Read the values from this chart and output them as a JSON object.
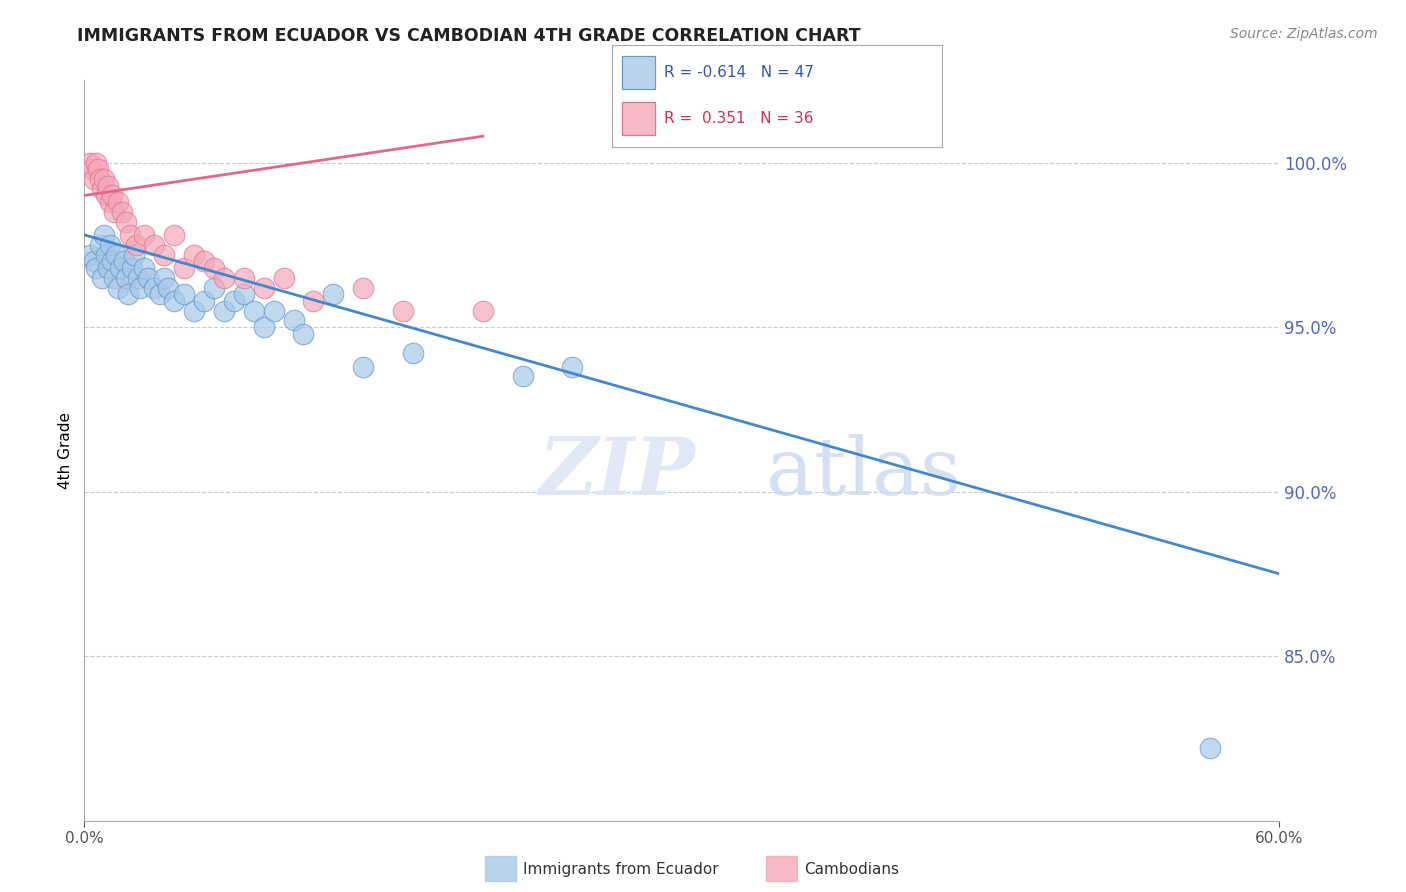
{
  "title": "IMMIGRANTS FROM ECUADOR VS CAMBODIAN 4TH GRADE CORRELATION CHART",
  "source_text": "Source: ZipAtlas.com",
  "ylabel": "4th Grade",
  "ytick_values": [
    85.0,
    90.0,
    95.0,
    100.0
  ],
  "xlim": [
    0.0,
    60.0
  ],
  "ylim": [
    80.0,
    102.5
  ],
  "legend1_label": "Immigrants from Ecuador",
  "legend2_label": "Cambodians",
  "blue_color": "#a8c8e8",
  "pink_color": "#f4a8b8",
  "blue_line_color": "#4488cc",
  "pink_line_color": "#e06888",
  "blue_marker_edge": "#6699cc",
  "pink_marker_edge": "#dd7799",
  "blue_x": [
    0.3,
    0.5,
    0.6,
    0.8,
    0.9,
    1.0,
    1.1,
    1.2,
    1.3,
    1.4,
    1.5,
    1.6,
    1.7,
    1.8,
    2.0,
    2.1,
    2.2,
    2.4,
    2.5,
    2.7,
    2.8,
    3.0,
    3.2,
    3.5,
    3.8,
    4.0,
    4.2,
    4.5,
    5.0,
    5.5,
    6.0,
    6.5,
    7.0,
    7.5,
    8.0,
    8.5,
    9.0,
    9.5,
    10.5,
    11.0,
    12.5,
    14.0,
    16.5,
    22.0,
    24.5,
    56.5
  ],
  "blue_y": [
    97.2,
    97.0,
    96.8,
    97.5,
    96.5,
    97.8,
    97.2,
    96.8,
    97.5,
    97.0,
    96.5,
    97.2,
    96.2,
    96.8,
    97.0,
    96.5,
    96.0,
    96.8,
    97.2,
    96.5,
    96.2,
    96.8,
    96.5,
    96.2,
    96.0,
    96.5,
    96.2,
    95.8,
    96.0,
    95.5,
    95.8,
    96.2,
    95.5,
    95.8,
    96.0,
    95.5,
    95.0,
    95.5,
    95.2,
    94.8,
    96.0,
    93.8,
    94.2,
    93.5,
    93.8,
    82.2
  ],
  "pink_x": [
    0.3,
    0.4,
    0.5,
    0.6,
    0.7,
    0.8,
    0.9,
    1.0,
    1.1,
    1.2,
    1.3,
    1.4,
    1.5,
    1.7,
    1.9,
    2.1,
    2.3,
    2.6,
    3.0,
    3.5,
    4.0,
    4.5,
    5.0,
    5.5,
    6.0,
    6.5,
    7.0,
    8.0,
    9.0,
    10.0,
    11.5,
    14.0,
    16.0,
    20.0
  ],
  "pink_y": [
    100.0,
    99.8,
    99.5,
    100.0,
    99.8,
    99.5,
    99.2,
    99.5,
    99.0,
    99.3,
    98.8,
    99.0,
    98.5,
    98.8,
    98.5,
    98.2,
    97.8,
    97.5,
    97.8,
    97.5,
    97.2,
    97.8,
    96.8,
    97.2,
    97.0,
    96.8,
    96.5,
    96.5,
    96.2,
    96.5,
    95.8,
    96.2,
    95.5,
    95.5
  ],
  "blue_trend_x0": 0.0,
  "blue_trend_x1": 60.0,
  "blue_trend_y0": 97.8,
  "blue_trend_y1": 87.5,
  "pink_trend_x0": 0.0,
  "pink_trend_x1": 20.0,
  "pink_trend_y0": 99.0,
  "pink_trend_y1": 100.8
}
